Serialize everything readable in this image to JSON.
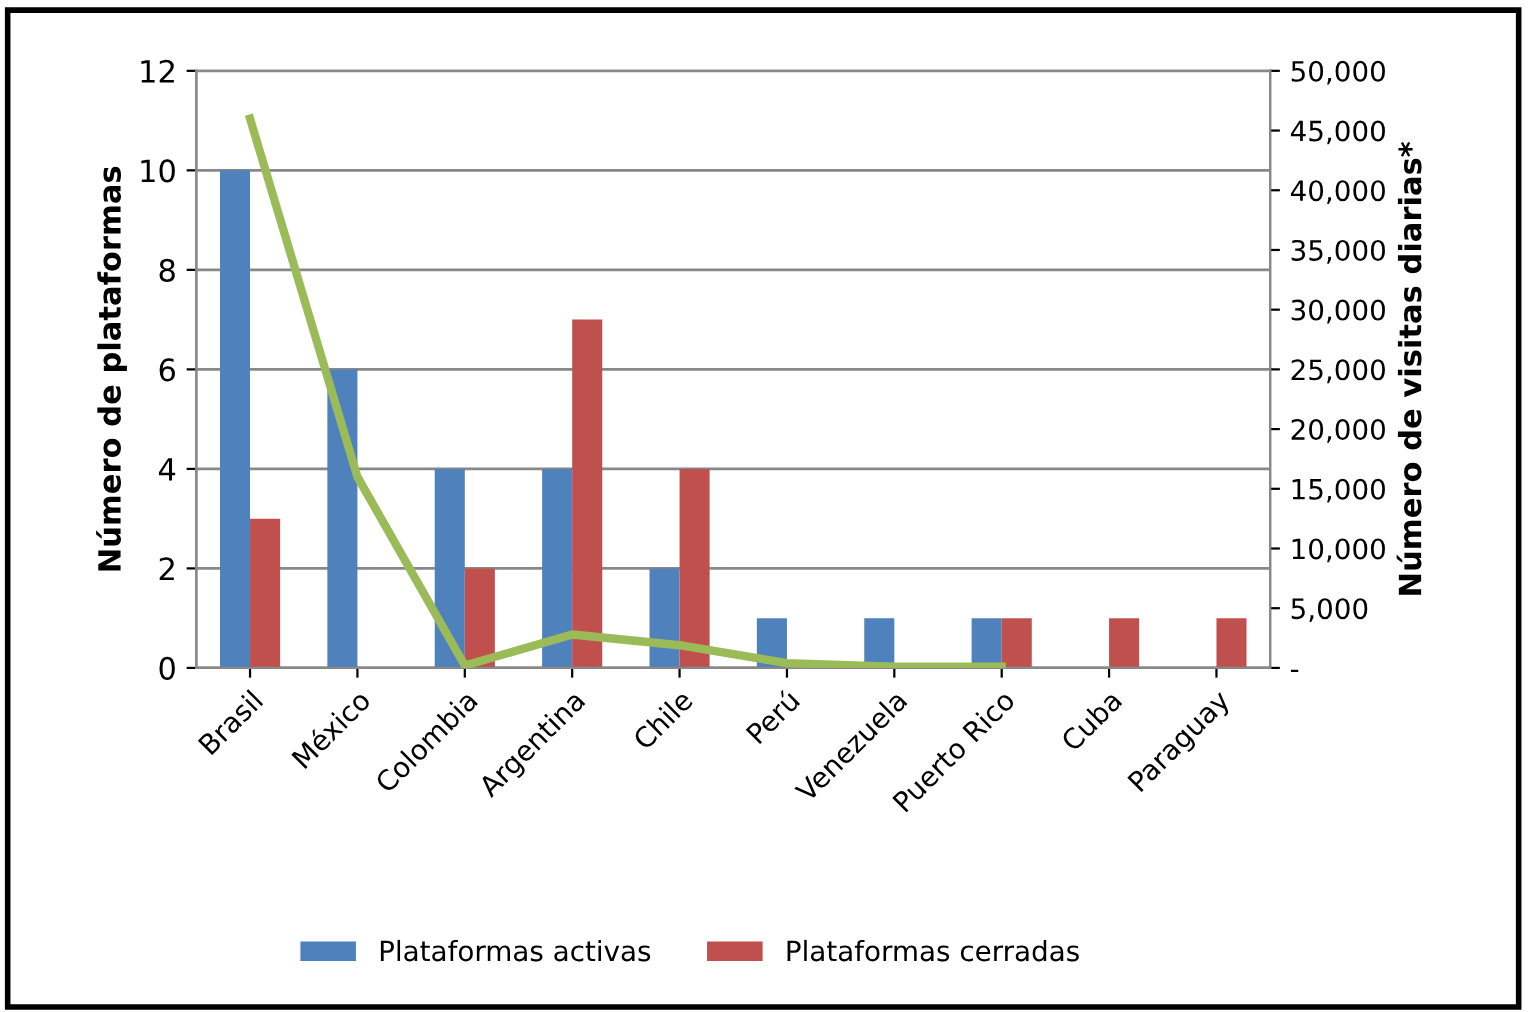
{
  "chart_data": {
    "type": "bar",
    "ylabel": "Número de plataformas",
    "y2label": "Número de visitas diarias*",
    "categories": [
      "Brasil",
      "México",
      "Colombia",
      "Argentina",
      "Chile",
      "Perú",
      "Venezuela",
      "Puerto Rico",
      "Cuba",
      "Paraguay"
    ],
    "series": [
      {
        "name": "Plataformas activas",
        "color": "#4f81bd",
        "values": [
          10,
          6,
          4,
          4,
          2,
          1,
          1,
          1,
          0,
          0
        ]
      },
      {
        "name": "Plataformas cerradas",
        "color": "#c0504d",
        "values": [
          3,
          0,
          2,
          7,
          4,
          0,
          0,
          1,
          1,
          1
        ]
      },
      {
        "type": "line",
        "axis": "y2",
        "color": "#9bbb59",
        "values": [
          46000,
          16000,
          200,
          2800,
          1900,
          400,
          100,
          100,
          null,
          null
        ]
      }
    ],
    "ylim": [
      0,
      12
    ],
    "yticks": [
      0,
      2,
      4,
      6,
      8,
      10,
      12
    ],
    "y2lim": [
      0,
      50000
    ],
    "y2ticks": [
      {
        "value": 0,
        "label": "-"
      },
      {
        "value": 5000,
        "label": "5,000"
      },
      {
        "value": 10000,
        "label": "10,000"
      },
      {
        "value": 15000,
        "label": "15,000"
      },
      {
        "value": 20000,
        "label": "20,000"
      },
      {
        "value": 25000,
        "label": "25,000"
      },
      {
        "value": 30000,
        "label": "30,000"
      },
      {
        "value": 35000,
        "label": "35,000"
      },
      {
        "value": 40000,
        "label": "40,000"
      },
      {
        "value": 45000,
        "label": "45,000"
      },
      {
        "value": 50000,
        "label": "50,000"
      }
    ],
    "grid": "y",
    "legend": "bottom"
  }
}
